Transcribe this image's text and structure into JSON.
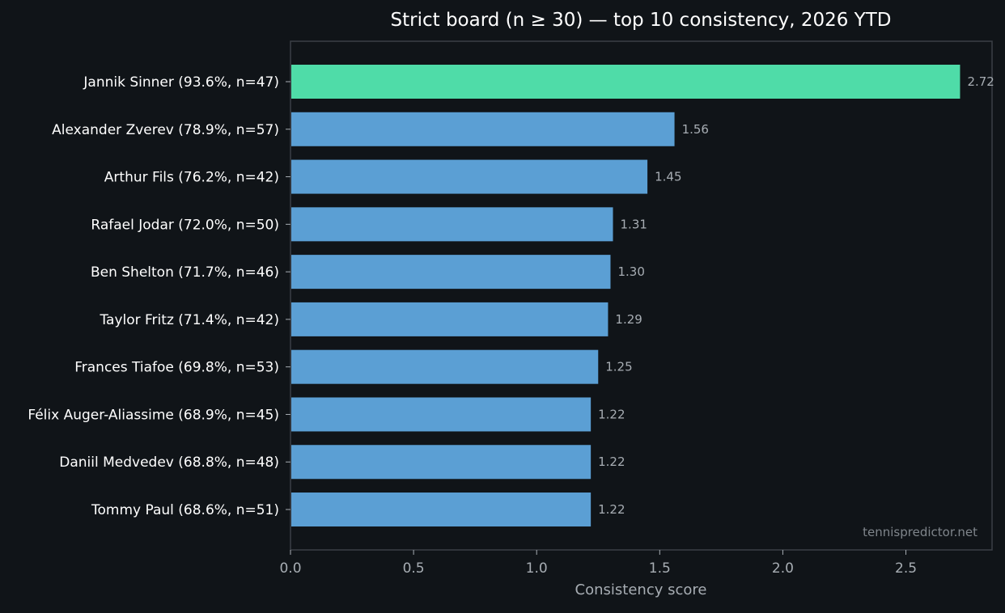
{
  "chart_data": {
    "type": "bar",
    "orientation": "horizontal",
    "title": "Strict board (n ≥ 30) — top 10 consistency, 2026 YTD",
    "xlabel": "Consistency score",
    "ylabel": "",
    "xlim": [
      0,
      2.85
    ],
    "xticks": [
      0.0,
      0.5,
      1.0,
      1.5,
      2.0,
      2.5
    ],
    "xtick_labels": [
      "0.0",
      "0.5",
      "1.0",
      "1.5",
      "2.0",
      "2.5"
    ],
    "grid": false,
    "highlight_color": "#4fdca8",
    "bar_color": "#5b9fd4",
    "categories": [
      "Jannik Sinner  (93.6%, n=47)",
      "Alexander Zverev  (78.9%, n=57)",
      "Arthur Fils  (76.2%, n=42)",
      "Rafael Jodar  (72.0%, n=50)",
      "Ben Shelton  (71.7%, n=46)",
      "Taylor Fritz  (71.4%, n=42)",
      "Frances Tiafoe  (69.8%, n=53)",
      "Félix Auger-Aliassime  (68.9%, n=45)",
      "Daniil Medvedev  (68.8%, n=48)",
      "Tommy Paul  (68.6%, n=51)"
    ],
    "values": [
      2.72,
      1.56,
      1.45,
      1.31,
      1.3,
      1.29,
      1.25,
      1.22,
      1.22,
      1.22
    ],
    "value_labels": [
      "2.72",
      "1.56",
      "1.45",
      "1.31",
      "1.30",
      "1.29",
      "1.25",
      "1.22",
      "1.22",
      "1.22"
    ],
    "highlight_index": 0,
    "watermark": "tennispredictor.net"
  }
}
